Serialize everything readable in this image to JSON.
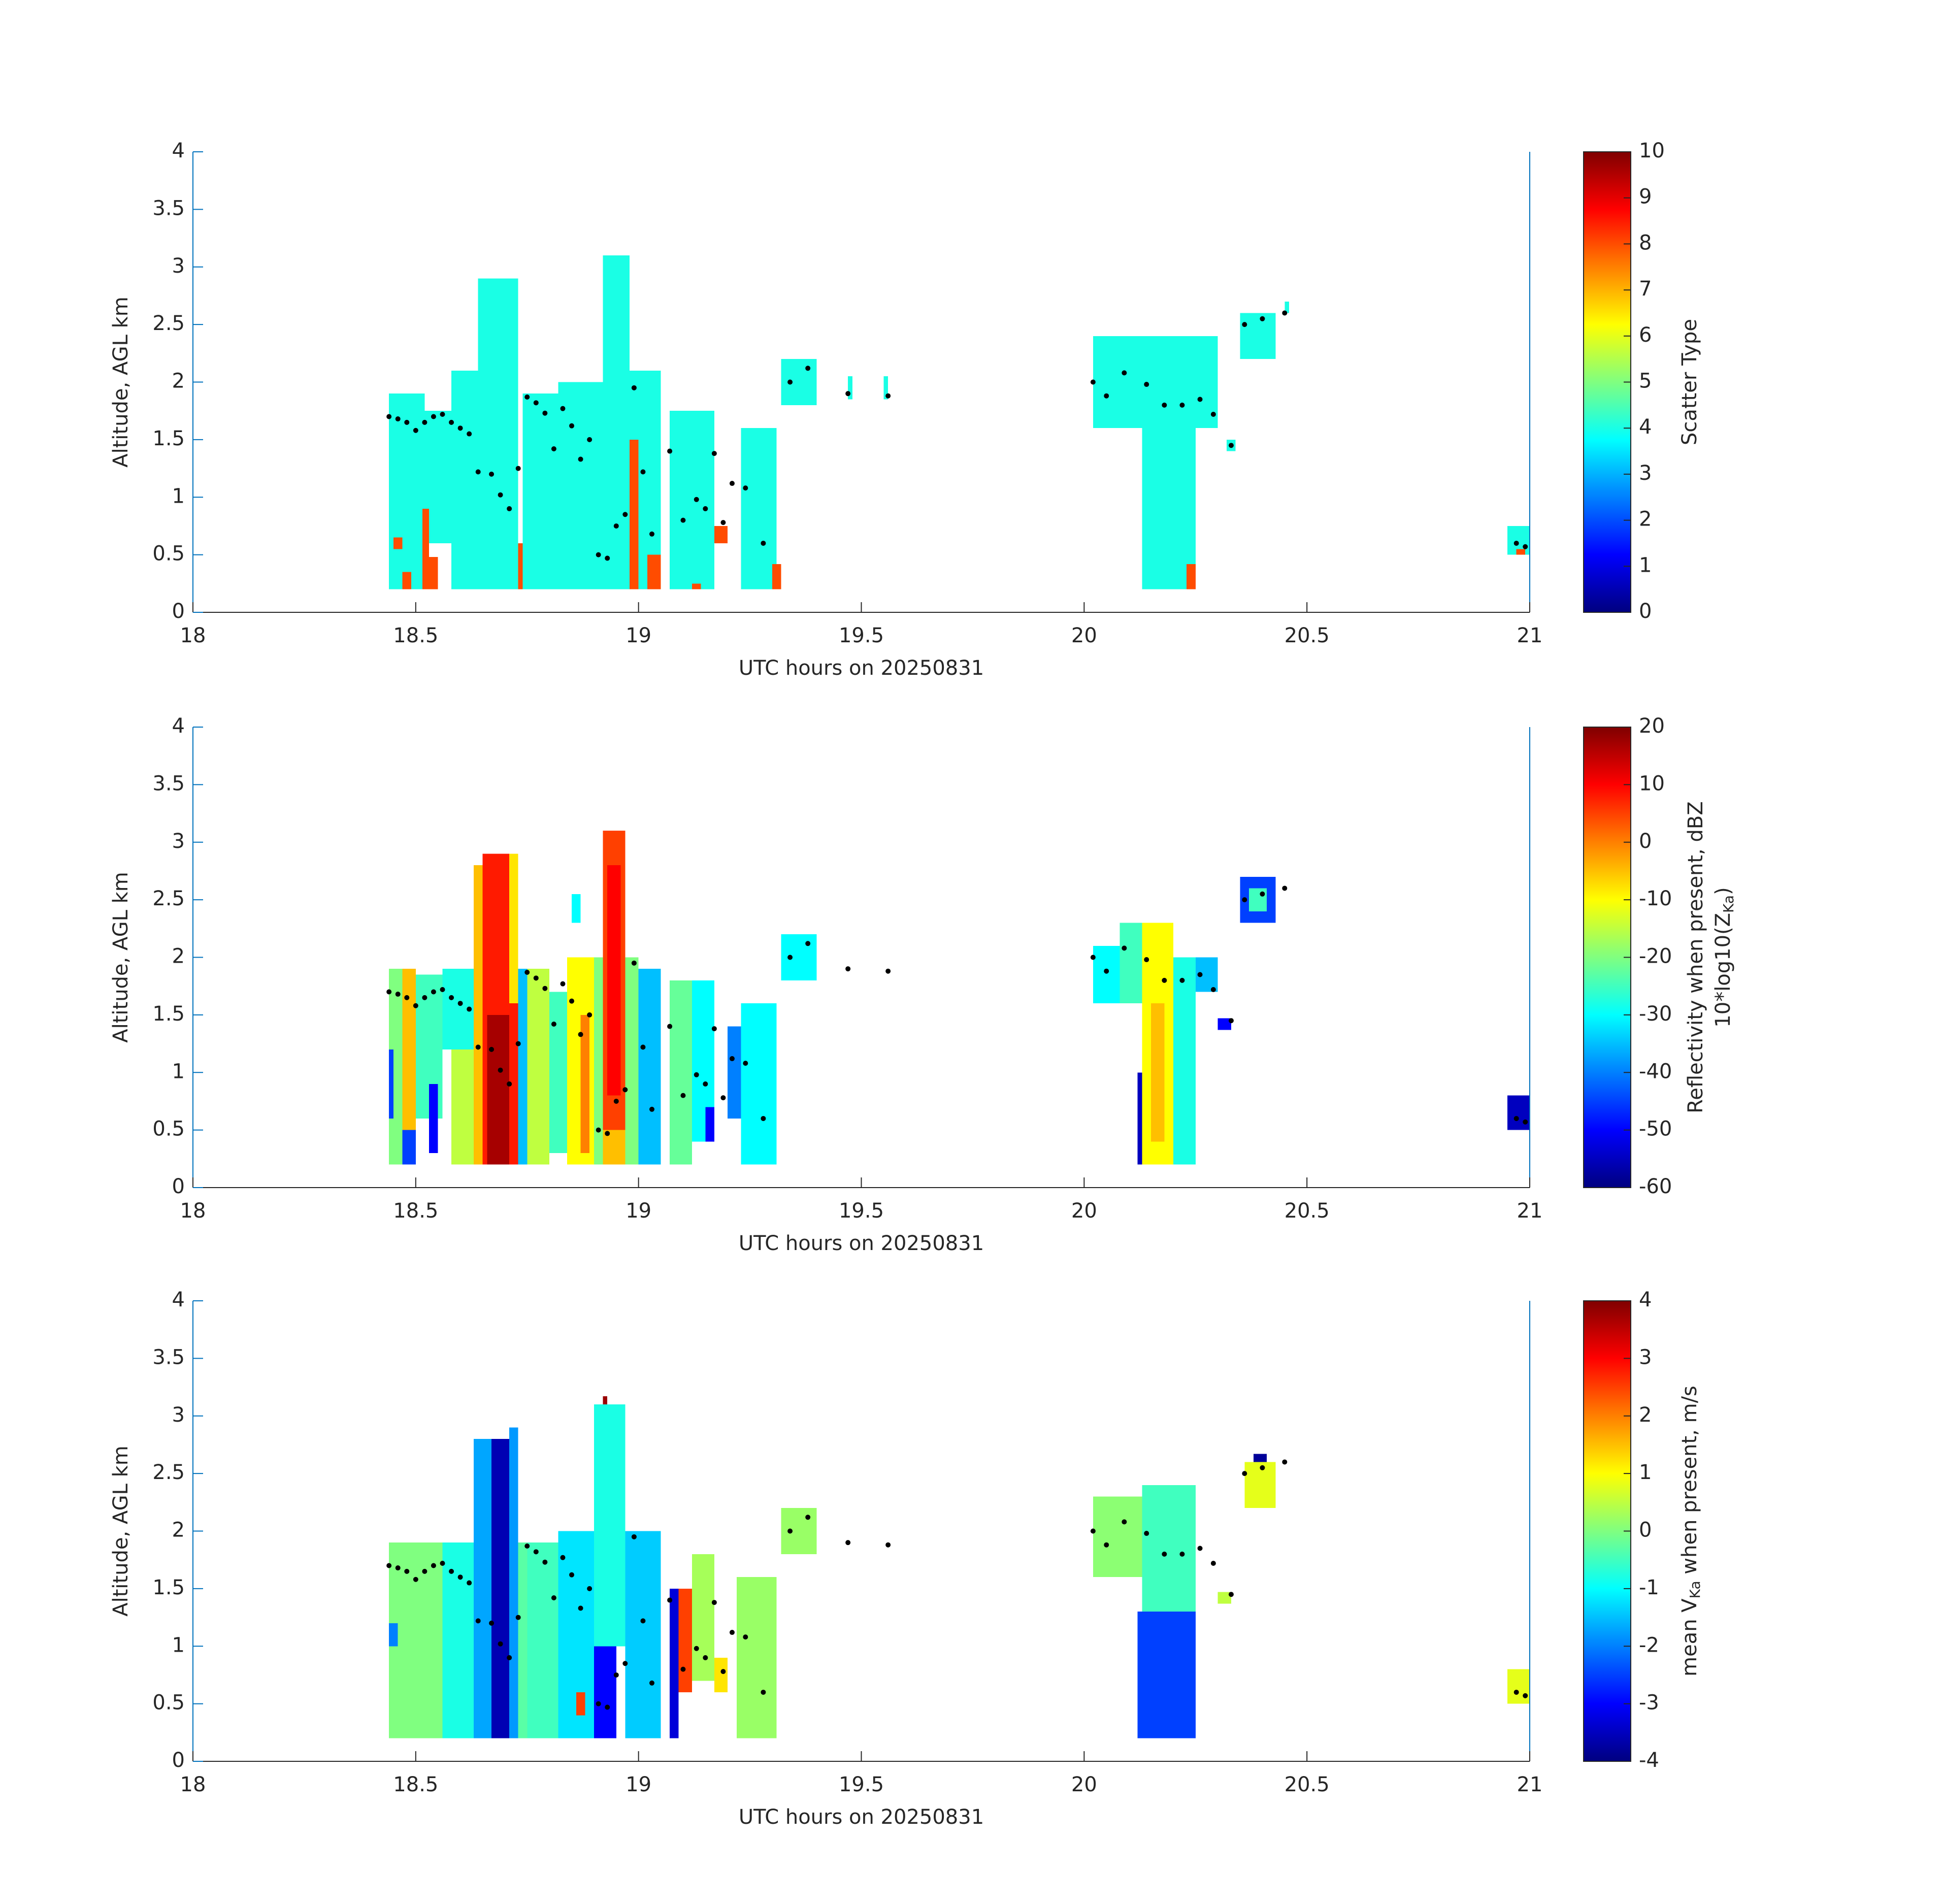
{
  "chart_data": [
    {
      "type": "heatmap",
      "colormap": "jet",
      "xlabel": "UTC hours on 20250831",
      "ylabel": "Altitude, AGL km",
      "clabel": [
        [
          "Scatter Type"
        ]
      ],
      "axis_color": "#0072bd",
      "xlim": [
        18,
        21
      ],
      "xticks": [
        18,
        18.5,
        19,
        19.5,
        20,
        20.5,
        21
      ],
      "ylim": [
        0,
        4
      ],
      "yticks": [
        0,
        0.5,
        1,
        1.5,
        2,
        2.5,
        3,
        3.5,
        4
      ],
      "clim": [
        0,
        10
      ],
      "cticks": [
        0,
        1,
        2,
        3,
        4,
        5,
        6,
        7,
        8,
        9,
        10
      ],
      "cells": {
        "x0": [
          18.44,
          18.45,
          18.47,
          18.52,
          18.515,
          18.53,
          18.58,
          18.64,
          18.73,
          18.74,
          18.82,
          18.92,
          18.96,
          18.98,
          19.02,
          19.07,
          19.12,
          19.17,
          19.23,
          19.3,
          19.32,
          19.47,
          19.55,
          20.02,
          20.13,
          20.23,
          20.35,
          20.45,
          20.32,
          20.95,
          20.97
        ],
        "x1": [
          18.52,
          18.47,
          18.49,
          18.58,
          18.53,
          18.55,
          18.64,
          18.73,
          18.75,
          18.82,
          18.92,
          18.98,
          19.05,
          19.0,
          19.05,
          19.17,
          19.14,
          19.2,
          19.31,
          19.32,
          19.4,
          19.48,
          19.56,
          20.3,
          20.25,
          20.25,
          20.43,
          20.46,
          20.34,
          21.0,
          20.99
        ],
        "y0": [
          0.2,
          0.55,
          0.2,
          0.6,
          0.2,
          0.2,
          0.2,
          0.2,
          0.2,
          0.2,
          0.2,
          0.2,
          0.2,
          0.2,
          0.2,
          0.2,
          0.2,
          0.6,
          0.2,
          0.2,
          1.8,
          1.85,
          1.85,
          1.6,
          0.2,
          0.2,
          2.2,
          2.6,
          1.4,
          0.5,
          0.5
        ],
        "y1": [
          1.9,
          0.65,
          0.35,
          1.75,
          0.9,
          0.48,
          2.1,
          2.9,
          0.6,
          1.9,
          2.0,
          3.1,
          2.1,
          1.5,
          0.5,
          1.75,
          0.25,
          0.75,
          1.6,
          0.42,
          2.2,
          2.05,
          2.05,
          2.4,
          1.6,
          0.42,
          2.6,
          2.7,
          1.5,
          0.75,
          0.55
        ],
        "values": [
          4,
          8,
          8,
          4,
          8,
          8,
          4,
          4,
          8,
          4,
          4,
          4,
          4,
          8,
          8,
          4,
          8,
          8,
          4,
          8,
          4,
          4,
          4,
          4,
          4,
          8,
          4,
          4,
          4,
          4,
          8
        ]
      },
      "points": {
        "x": [
          18.44,
          18.46,
          18.48,
          18.5,
          18.52,
          18.54,
          18.56,
          18.58,
          18.6,
          18.62,
          18.64,
          18.67,
          18.69,
          18.71,
          18.73,
          18.75,
          18.77,
          18.79,
          18.81,
          18.83,
          18.85,
          18.87,
          18.89,
          18.91,
          18.93,
          18.95,
          18.97,
          18.99,
          19.01,
          19.03,
          19.07,
          19.1,
          19.13,
          19.15,
          19.17,
          19.19,
          19.21,
          19.24,
          19.28,
          19.34,
          19.38,
          19.47,
          19.56,
          20.02,
          20.05,
          20.09,
          20.14,
          20.18,
          20.22,
          20.26,
          20.29,
          20.33,
          20.36,
          20.4,
          20.45,
          20.97,
          20.99
        ],
        "y": [
          1.7,
          1.68,
          1.65,
          1.58,
          1.65,
          1.7,
          1.72,
          1.65,
          1.6,
          1.55,
          1.22,
          1.2,
          1.02,
          0.9,
          1.25,
          1.87,
          1.82,
          1.73,
          1.42,
          1.77,
          1.62,
          1.33,
          1.5,
          0.5,
          0.47,
          0.75,
          0.85,
          1.95,
          1.22,
          0.68,
          1.4,
          0.8,
          0.98,
          0.9,
          1.38,
          0.78,
          1.12,
          1.08,
          0.6,
          2.0,
          2.12,
          1.9,
          1.88,
          2.0,
          1.88,
          2.08,
          1.98,
          1.8,
          1.8,
          1.85,
          1.72,
          1.45,
          2.5,
          2.55,
          2.6,
          0.6,
          0.57
        ]
      }
    },
    {
      "type": "heatmap",
      "colormap": "jet",
      "xlabel": "UTC hours on 20250831",
      "ylabel": "Altitude, AGL km",
      "clabel": [
        [
          "Reflectivity when present, dBZ"
        ],
        [
          "10*log10(Z",
          "Ka",
          ")"
        ]
      ],
      "axis_color": "#0072bd",
      "xlim": [
        18,
        21
      ],
      "xticks": [
        18,
        18.5,
        19,
        19.5,
        20,
        20.5,
        21
      ],
      "ylim": [
        0,
        4
      ],
      "yticks": [
        0,
        0.5,
        1,
        1.5,
        2,
        2.5,
        3,
        3.5,
        4
      ],
      "clim": [
        -60,
        20
      ],
      "cticks": [
        -60,
        -50,
        -40,
        -30,
        -20,
        -10,
        0,
        10,
        20
      ],
      "cells": {
        "x0": [
          18.44,
          18.44,
          18.47,
          18.47,
          18.5,
          18.53,
          18.56,
          18.58,
          18.63,
          18.65,
          18.66,
          18.71,
          18.73,
          18.75,
          18.8,
          18.84,
          18.87,
          18.9,
          18.92,
          18.93,
          18.92,
          18.97,
          19.0,
          19.07,
          19.12,
          19.15,
          19.2,
          19.23,
          19.32,
          18.85,
          20.02,
          20.08,
          20.13,
          20.15,
          20.2,
          20.25,
          20.12,
          20.3,
          20.35,
          20.37,
          20.95
        ],
        "x1": [
          18.47,
          18.45,
          18.5,
          18.5,
          18.56,
          18.55,
          18.63,
          18.63,
          18.65,
          18.73,
          18.71,
          18.73,
          18.75,
          18.8,
          18.84,
          18.9,
          18.89,
          18.92,
          18.97,
          18.96,
          18.97,
          19.0,
          19.05,
          19.12,
          19.17,
          19.17,
          19.23,
          19.31,
          19.4,
          18.87,
          20.08,
          20.13,
          20.2,
          20.18,
          20.25,
          20.3,
          20.13,
          20.33,
          20.43,
          20.41,
          21.0
        ],
        "y0": [
          0.2,
          0.6,
          0.5,
          0.2,
          0.6,
          0.3,
          1.2,
          0.2,
          0.2,
          0.2,
          0.2,
          1.6,
          0.2,
          0.2,
          0.3,
          0.2,
          0.3,
          0.2,
          0.2,
          0.8,
          0.2,
          0.2,
          0.2,
          0.2,
          0.4,
          0.4,
          0.6,
          0.2,
          1.8,
          2.3,
          1.6,
          1.6,
          0.2,
          0.4,
          0.2,
          1.7,
          0.2,
          1.37,
          2.3,
          2.4,
          0.5
        ],
        "y1": [
          1.9,
          1.2,
          1.9,
          0.5,
          1.85,
          0.9,
          1.9,
          1.2,
          2.8,
          2.9,
          1.5,
          2.9,
          1.9,
          1.9,
          1.7,
          2.0,
          1.5,
          2.0,
          3.1,
          2.8,
          0.5,
          2.0,
          1.9,
          1.8,
          1.8,
          0.7,
          1.4,
          1.6,
          2.2,
          2.55,
          2.1,
          2.3,
          2.3,
          1.6,
          2.0,
          2.0,
          1.0,
          1.47,
          2.7,
          2.6,
          0.8
        ],
        "values": [
          -20,
          -45,
          -5,
          -45,
          -25,
          -50,
          -28,
          -15,
          -5,
          8,
          17,
          -8,
          -35,
          -15,
          -25,
          -10,
          0,
          -20,
          5,
          10,
          -5,
          -20,
          -35,
          -22,
          -30,
          -50,
          -40,
          -30,
          -30,
          -30,
          -30,
          -25,
          -10,
          -5,
          -28,
          -35,
          -55,
          -50,
          -45,
          -25,
          -55
        ]
      },
      "points": {
        "x": [
          18.44,
          18.46,
          18.48,
          18.5,
          18.52,
          18.54,
          18.56,
          18.58,
          18.6,
          18.62,
          18.64,
          18.67,
          18.69,
          18.71,
          18.73,
          18.75,
          18.77,
          18.79,
          18.81,
          18.83,
          18.85,
          18.87,
          18.89,
          18.91,
          18.93,
          18.95,
          18.97,
          18.99,
          19.01,
          19.03,
          19.07,
          19.1,
          19.13,
          19.15,
          19.17,
          19.19,
          19.21,
          19.24,
          19.28,
          19.34,
          19.38,
          19.47,
          19.56,
          20.02,
          20.05,
          20.09,
          20.14,
          20.18,
          20.22,
          20.26,
          20.29,
          20.33,
          20.36,
          20.4,
          20.45,
          20.97,
          20.99
        ],
        "y": [
          1.7,
          1.68,
          1.65,
          1.58,
          1.65,
          1.7,
          1.72,
          1.65,
          1.6,
          1.55,
          1.22,
          1.2,
          1.02,
          0.9,
          1.25,
          1.87,
          1.82,
          1.73,
          1.42,
          1.77,
          1.62,
          1.33,
          1.5,
          0.5,
          0.47,
          0.75,
          0.85,
          1.95,
          1.22,
          0.68,
          1.4,
          0.8,
          0.98,
          0.9,
          1.38,
          0.78,
          1.12,
          1.08,
          0.6,
          2.0,
          2.12,
          1.9,
          1.88,
          2.0,
          1.88,
          2.08,
          1.98,
          1.8,
          1.8,
          1.85,
          1.72,
          1.45,
          2.5,
          2.55,
          2.6,
          0.6,
          0.57
        ]
      }
    },
    {
      "type": "heatmap",
      "colormap": "jet",
      "xlabel": "UTC hours on 20250831",
      "ylabel": "Altitude, AGL km",
      "clabel": [
        [
          "mean V",
          "Ka",
          " when present, m/s"
        ]
      ],
      "axis_color": "#0072bd",
      "xlim": [
        18,
        21
      ],
      "xticks": [
        18,
        18.5,
        19,
        19.5,
        20,
        20.5,
        21
      ],
      "ylim": [
        0,
        4
      ],
      "yticks": [
        0,
        0.5,
        1,
        1.5,
        2,
        2.5,
        3,
        3.5,
        4
      ],
      "clim": [
        -4,
        4
      ],
      "cticks": [
        -4,
        -3,
        -2,
        -1,
        0,
        1,
        2,
        3,
        4
      ],
      "cells": {
        "x0": [
          18.44,
          18.44,
          18.56,
          18.63,
          18.67,
          18.71,
          18.73,
          18.75,
          18.82,
          18.86,
          18.9,
          18.9,
          18.92,
          18.97,
          19.07,
          19.09,
          19.12,
          19.17,
          19.22,
          19.32,
          20.02,
          20.13,
          20.12,
          20.3,
          20.36,
          20.38,
          20.95
        ],
        "x1": [
          18.56,
          18.46,
          18.63,
          18.67,
          18.71,
          18.73,
          18.75,
          18.82,
          18.9,
          18.88,
          18.95,
          18.97,
          18.93,
          19.05,
          19.09,
          19.12,
          19.17,
          19.2,
          19.31,
          19.4,
          20.13,
          20.25,
          20.25,
          20.33,
          20.43,
          20.41,
          21.0
        ],
        "y0": [
          0.2,
          1.0,
          0.2,
          0.2,
          0.2,
          0.2,
          0.2,
          0.2,
          0.2,
          0.4,
          0.2,
          1.0,
          3.1,
          0.2,
          0.2,
          0.6,
          0.7,
          0.6,
          0.2,
          1.8,
          1.6,
          1.3,
          0.2,
          1.37,
          2.2,
          2.6,
          0.5
        ],
        "y1": [
          1.9,
          1.2,
          1.9,
          2.8,
          2.8,
          2.9,
          1.9,
          1.9,
          2.0,
          0.6,
          1.0,
          3.1,
          3.17,
          2.0,
          1.5,
          1.5,
          1.8,
          0.9,
          1.6,
          2.2,
          2.3,
          2.4,
          1.3,
          1.47,
          2.6,
          2.67,
          0.8
        ],
        "values": [
          0,
          -2,
          -0.8,
          -1.7,
          -3.6,
          -1.8,
          -0.3,
          -0.5,
          -1.2,
          2.5,
          -3,
          -0.8,
          3.8,
          -1.4,
          -3.3,
          2.5,
          0.3,
          1.2,
          0.2,
          0.2,
          0.1,
          -0.5,
          -2.5,
          0.5,
          0.8,
          -3.8,
          0.8
        ]
      },
      "points": {
        "x": [
          18.44,
          18.46,
          18.48,
          18.5,
          18.52,
          18.54,
          18.56,
          18.58,
          18.6,
          18.62,
          18.64,
          18.67,
          18.69,
          18.71,
          18.73,
          18.75,
          18.77,
          18.79,
          18.81,
          18.83,
          18.85,
          18.87,
          18.89,
          18.91,
          18.93,
          18.95,
          18.97,
          18.99,
          19.01,
          19.03,
          19.07,
          19.1,
          19.13,
          19.15,
          19.17,
          19.19,
          19.21,
          19.24,
          19.28,
          19.34,
          19.38,
          19.47,
          19.56,
          20.02,
          20.05,
          20.09,
          20.14,
          20.18,
          20.22,
          20.26,
          20.29,
          20.33,
          20.36,
          20.4,
          20.45,
          20.97,
          20.99
        ],
        "y": [
          1.7,
          1.68,
          1.65,
          1.58,
          1.65,
          1.7,
          1.72,
          1.65,
          1.6,
          1.55,
          1.22,
          1.2,
          1.02,
          0.9,
          1.25,
          1.87,
          1.82,
          1.73,
          1.42,
          1.77,
          1.62,
          1.33,
          1.5,
          0.5,
          0.47,
          0.75,
          0.85,
          1.95,
          1.22,
          0.68,
          1.4,
          0.8,
          0.98,
          0.9,
          1.38,
          0.78,
          1.12,
          1.08,
          0.6,
          2.0,
          2.12,
          1.9,
          1.88,
          2.0,
          1.88,
          2.08,
          1.98,
          1.8,
          1.8,
          1.85,
          1.72,
          1.45,
          2.5,
          2.55,
          2.6,
          0.6,
          0.57
        ]
      }
    }
  ]
}
